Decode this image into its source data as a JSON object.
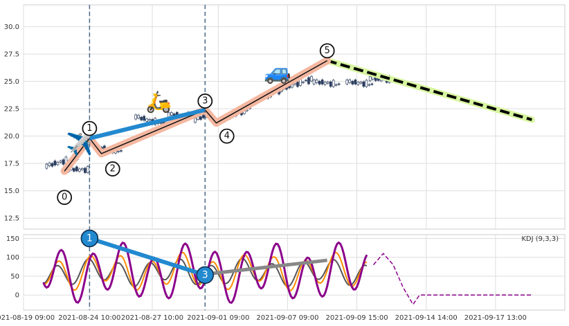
{
  "chart_data": {
    "type": "candlestick",
    "x_ticks": [
      "2021-08-19 09:00",
      "2021-08-24 10:00",
      "2021-08-27 10:00",
      "2021-09-01 09:00",
      "2021-09-07 09:00",
      "2021-09-09 15:00",
      "2021-09-14 14:00",
      "2021-09-17 13:00"
    ],
    "y_ticks_price": [
      "12.5",
      "15.0",
      "17.5",
      "20.0",
      "22.5",
      "25.0",
      "27.5",
      "30.0"
    ],
    "ylim_price": [
      11.5,
      32.0
    ],
    "y_ticks_kdj": [
      "0",
      "50",
      "100",
      "150"
    ],
    "ylim_kdj": [
      -40,
      160
    ],
    "indicator_label": "KDJ (9,3,3)",
    "grid": true,
    "wave_points": [
      {
        "label": "0",
        "x": 6.2,
        "y": 16.8
      },
      {
        "label": "1",
        "x": 10.0,
        "y": 19.8
      },
      {
        "label": "2",
        "x": 11.8,
        "y": 18.4
      },
      {
        "label": "3",
        "x": 27.5,
        "y": 22.4
      },
      {
        "label": "4",
        "x": 29.2,
        "y": 21.2
      },
      {
        "label": "5",
        "x": 46.0,
        "y": 26.9
      }
    ],
    "projection_end": {
      "x": 77.0,
      "y": 21.5
    },
    "price_trendline": {
      "x": [
        10.0,
        27.5
      ],
      "y": [
        19.8,
        22.4
      ]
    },
    "kdj_divergence_1": {
      "x": [
        10.0,
        27.5
      ],
      "y": [
        150,
        53
      ]
    },
    "kdj_divergence_2": {
      "x": [
        27.5,
        46.0
      ],
      "y": [
        55,
        92
      ]
    },
    "kdj_markers": [
      {
        "label": "1",
        "x": 10.0,
        "y": 150
      },
      {
        "label": "3",
        "x": 27.5,
        "y": 53
      }
    ],
    "vlines_x": [
      10.0,
      27.5
    ],
    "emoji": {
      "plane": "✈️",
      "scooter": "🛵",
      "car": "🚙"
    },
    "colors": {
      "wave_band": "#f4b7a0",
      "wave_line": "#111111",
      "trend_blue": "#2289cf",
      "kdj_k": "#8b008b",
      "kdj_d": "#ff8c00",
      "kdj_j": "#555555",
      "projection_band": "#d8f5a0",
      "projection_line": "#000000",
      "vline": "#4a6a8a"
    }
  }
}
